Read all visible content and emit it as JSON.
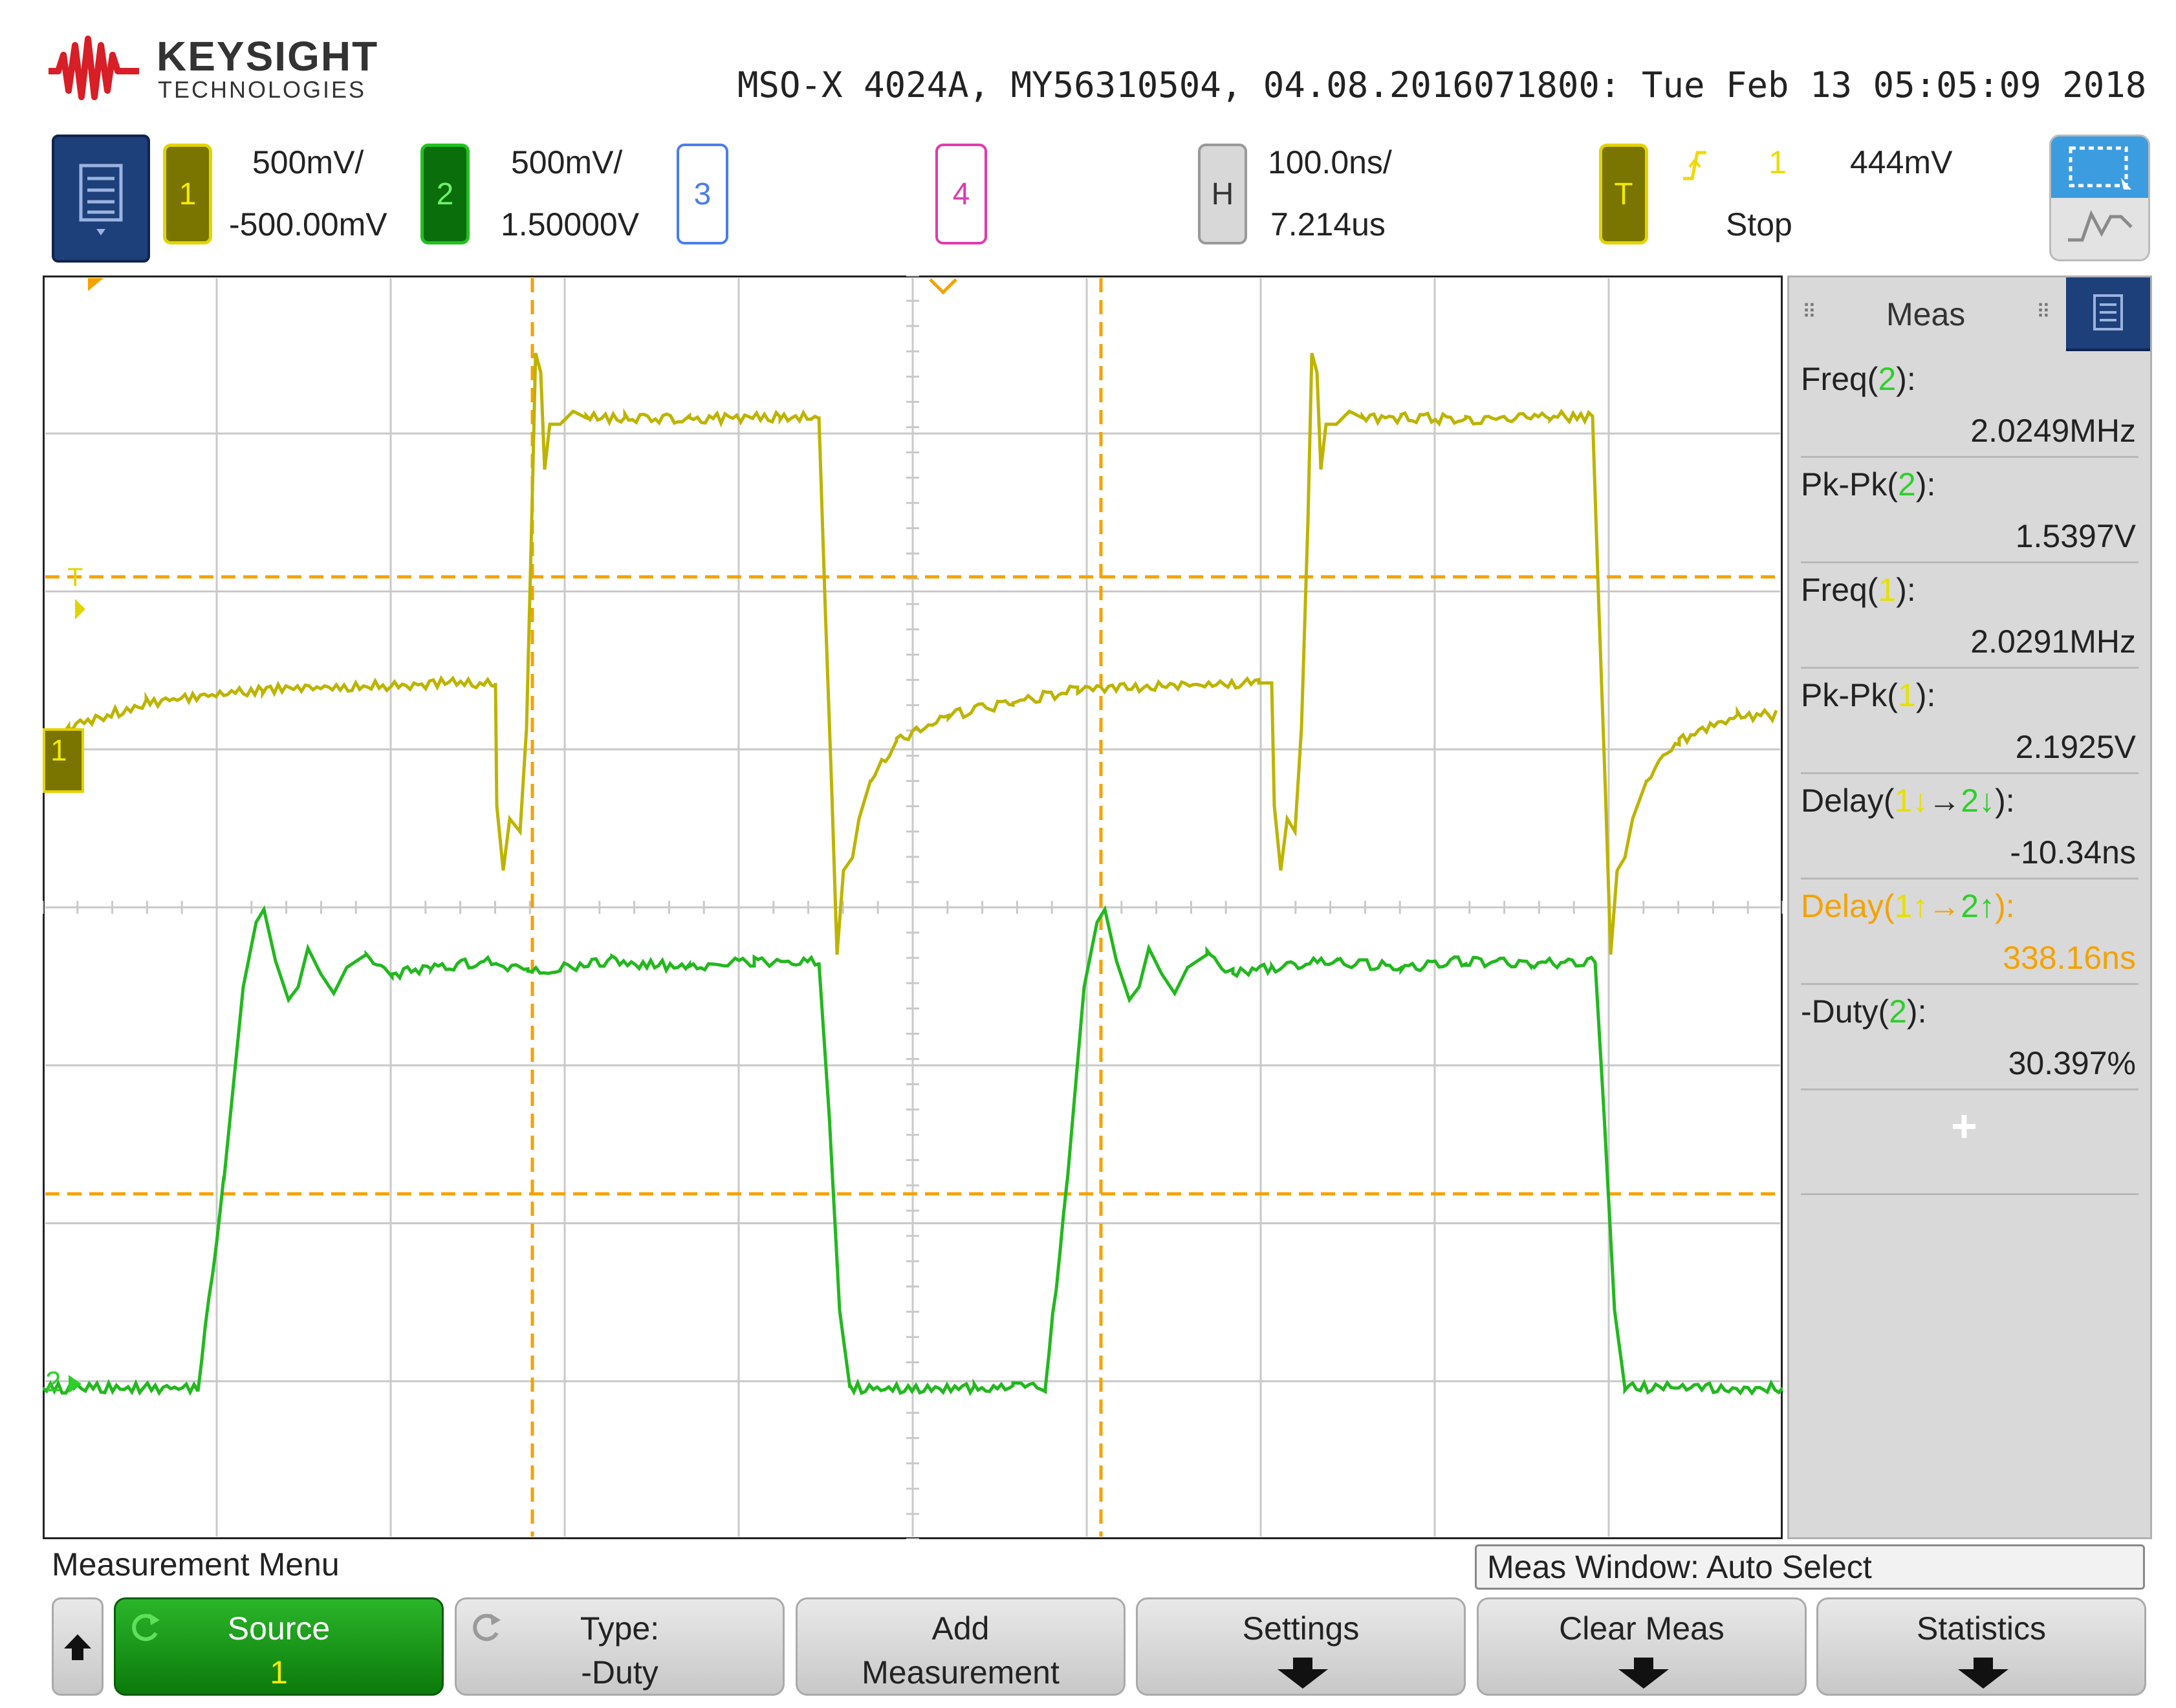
{
  "header": {
    "brand_name": "KEYSIGHT",
    "brand_sub": "TECHNOLOGIES",
    "device_info": "MSO-X 4024A, MY56310504, 04.08.2016071800: Tue Feb 13 05:05:09 2018"
  },
  "channels": {
    "ch1": {
      "number": "1",
      "scale": "500mV/",
      "offset": "-500.00mV",
      "color": "#e2d400"
    },
    "ch2": {
      "number": "2",
      "scale": "500mV/",
      "offset": "1.50000V",
      "color": "#21c21f"
    },
    "ch3": {
      "number": "3",
      "color": "#4a7dea"
    },
    "ch4": {
      "number": "4",
      "color": "#e03ab0"
    }
  },
  "horizontal": {
    "badge": "H",
    "timebase": "100.0ns/",
    "position": "7.214us"
  },
  "trigger": {
    "badge": "T",
    "source": "1",
    "level": "444mV",
    "status": "Stop"
  },
  "meas_panel": {
    "title": "Meas",
    "items": [
      {
        "name_pre": "Freq(",
        "ch": "2",
        "name_post": "):",
        "value": "2.0249MHz"
      },
      {
        "name_pre": "Pk-Pk(",
        "ch": "2",
        "name_post": "):",
        "value": "1.5397V"
      },
      {
        "name_pre": "Freq(",
        "ch": "1",
        "name_post": "):",
        "value": "2.0291MHz"
      },
      {
        "name_pre": "Pk-Pk(",
        "ch": "1",
        "name_post": "):",
        "value": "2.1925V"
      },
      {
        "name_pre": "Delay(",
        "ch": "1",
        "edge1": "↓",
        "arrow": "→",
        "ch_b": "2",
        "edge2": "↓",
        "name_post": "):",
        "value": "-10.34ns"
      },
      {
        "name_pre": "Delay(",
        "ch": "1",
        "edge1": "↑",
        "arrow": "→",
        "ch_b": "2",
        "edge2": "↑",
        "name_post": "):",
        "value": "338.16ns",
        "highlight_color": "#f5a200"
      },
      {
        "name_pre": "-Duty(",
        "ch": "2",
        "name_post": "):",
        "value": "30.397%"
      }
    ],
    "add_symbol": "+"
  },
  "bottom": {
    "menu_title": "Measurement Menu",
    "meas_window": "Meas Window: Auto Select",
    "softkeys": [
      {
        "line1": "Source",
        "line2": "1"
      },
      {
        "line1": "Type:",
        "line2": "-Duty"
      },
      {
        "line1": "Add",
        "line2": "Measurement"
      },
      {
        "line1": "Settings",
        "line2": ""
      },
      {
        "line1": "Clear Meas",
        "line2": ""
      },
      {
        "line1": "Statistics",
        "line2": ""
      }
    ]
  },
  "screen": {
    "ch1_marker": "1",
    "ch2_marker": "2",
    "trigger_marker": "T",
    "trace_colors": {
      "ch1": "#bdb400",
      "ch2": "#22b81e",
      "cursor": "#f5a200",
      "grid": "#c9c9c9"
    }
  },
  "icons": {
    "logo": "keysight-wave-logo",
    "menu": "menu-list-icon",
    "zoom": "zoom-select-icon",
    "back": "up-arrow-icon",
    "down_arrow": "down-arrow-icon",
    "refresh": "refresh-icon",
    "trigger_edge": "rising-edge-icon",
    "ground": "ground-icon"
  }
}
